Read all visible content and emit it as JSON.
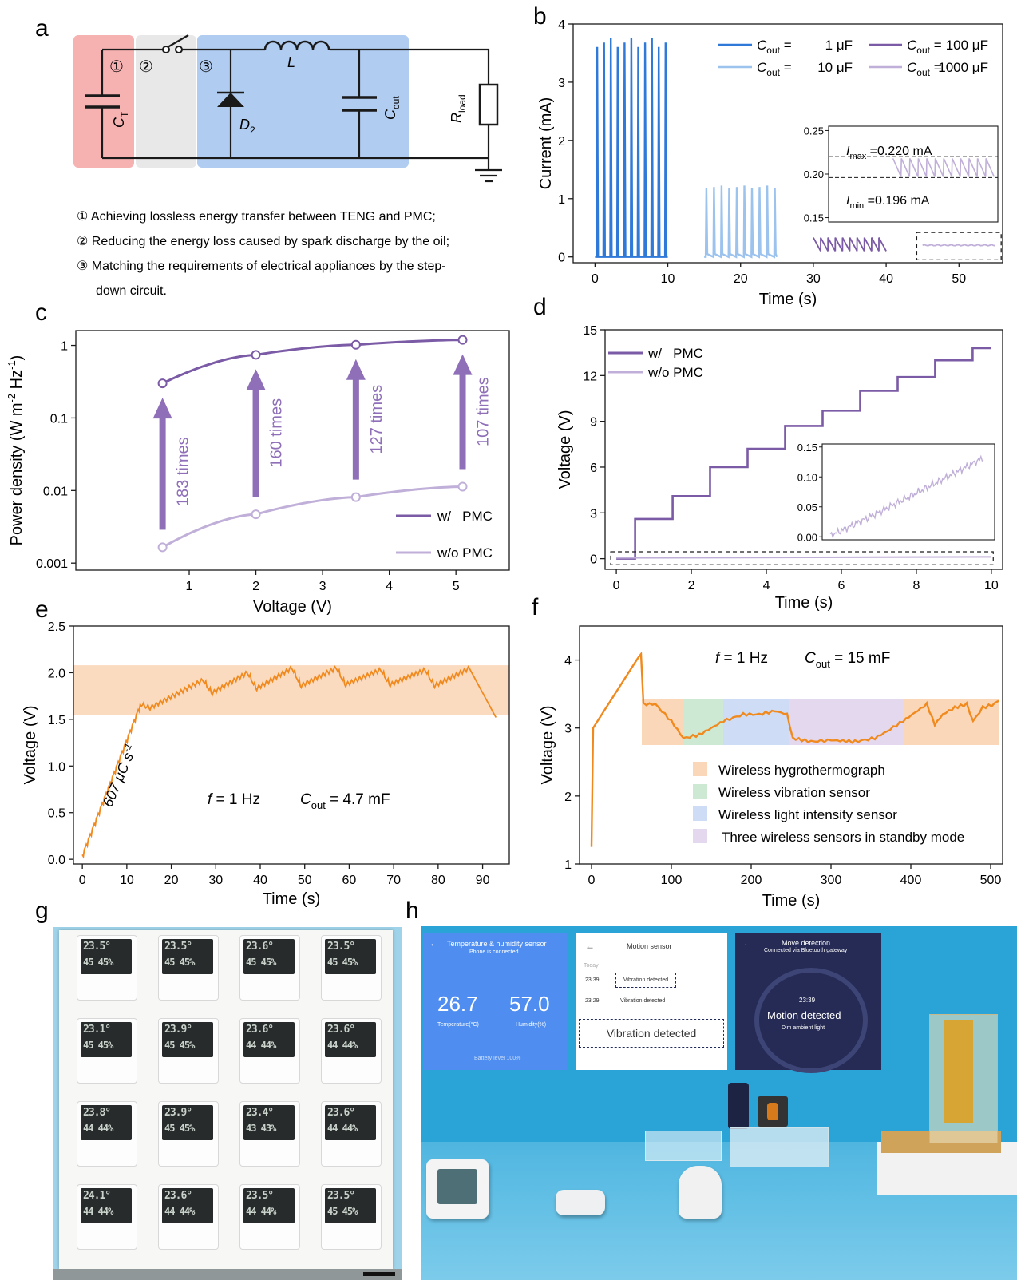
{
  "colors": {
    "purple": "#7b5aa6",
    "lilac": "#c0afd8",
    "blue": "#2f79d9",
    "lightblue": "#9cc3ee",
    "orange": "#f08a1e",
    "pink": "#f4a3a3",
    "gray": "#e8e8e8",
    "bluebox": "#a9c6f0"
  },
  "panels": {
    "a": "a",
    "b": "b",
    "c": "c",
    "d": "d",
    "e": "e",
    "f": "f",
    "g": "g",
    "h": "h"
  },
  "circuit": {
    "markers": [
      "①",
      "②",
      "③"
    ],
    "CT": "C",
    "CT_sub": "T",
    "D2": "D",
    "D2_sub": "2",
    "L": "L",
    "Cout": "C",
    "Cout_sub": "out",
    "Rload": "R",
    "Rload_sub": "load"
  },
  "notes": [
    "① Achieving lossless energy transfer between TENG and PMC;",
    "② Reducing the energy loss caused by spark discharge by the oil;",
    "③ Matching the requirements of electrical appliances by the step-",
    "down circuit."
  ],
  "chart_data": [
    {
      "panel": "b",
      "type": "line",
      "xlabel": "Time (s)",
      "ylabel": "Current (mA)",
      "xlim": [
        -3,
        56
      ],
      "ylim": [
        -0.1,
        4
      ],
      "xticks": [
        0,
        10,
        20,
        30,
        40,
        50
      ],
      "yticks": [
        0,
        1,
        2,
        3,
        4
      ],
      "legend_placement": "top-right",
      "series": [
        {
          "legend": "C",
          "sub": "out",
          "eq": "=",
          "value": "1 μF",
          "color": "#2f79d9",
          "x_range": [
            0,
            10
          ],
          "peak": 3.68,
          "pulses": 11
        },
        {
          "legend": "C",
          "sub": "out",
          "eq": "=",
          "value": "10 μF",
          "color": "#9cc3ee",
          "x_range": [
            15,
            25
          ],
          "peak": 1.2,
          "pulses": 10
        },
        {
          "legend": "C",
          "sub": "out",
          "eq": "=",
          "value": "100 μF",
          "color": "#7b5aa6",
          "x_range": [
            30,
            40
          ],
          "peak": 0.33,
          "pulses": 10
        },
        {
          "legend": "C",
          "sub": "out",
          "eq": "=",
          "value": "1000 μF",
          "color": "#c0afd8",
          "x_range": [
            45,
            55
          ],
          "peak": 0.22,
          "pulses": 10
        }
      ],
      "inset": {
        "yticks": [
          "0.25",
          "0.20",
          "0.15"
        ],
        "ylim": [
          0.145,
          0.255
        ],
        "imax_label": "I",
        "imax_sub": "max",
        "imax_text": "=0.220 mA",
        "imin_label": "I",
        "imin_sub": "min",
        "imin_text": "=0.196 mA",
        "imax": 0.22,
        "imin": 0.196
      }
    },
    {
      "panel": "c",
      "type": "line",
      "xlabel": "Voltage (V)",
      "ylabel": "Power density (W m",
      "ylabel_sup1": "-2",
      "ylabel_mid": " Hz",
      "ylabel_sup2": "-1",
      "ylabel_end": ")",
      "xlim": [
        -0.7,
        5.8
      ],
      "yscale": "log",
      "ylim": [
        0.0008,
        1.6
      ],
      "xticks": [
        1,
        2,
        3,
        4,
        5
      ],
      "yticks": [
        {
          "v": 1,
          "label": "1"
        },
        {
          "v": 0.1,
          "label": "0.1"
        },
        {
          "v": 0.01,
          "label": "0.01"
        },
        {
          "v": 0.001,
          "label": "0.001"
        }
      ],
      "series": [
        {
          "name": "w/   PMC",
          "color": "#7b5aa6",
          "x": [
            0.6,
            2,
            3.5,
            5.1
          ],
          "y": [
            0.3,
            0.74,
            1.02,
            1.19
          ]
        },
        {
          "name": "w/o PMC",
          "color": "#c0afd8",
          "x": [
            0.6,
            2,
            3.5,
            5.1
          ],
          "y": [
            0.00165,
            0.0047,
            0.0081,
            0.0113
          ]
        }
      ],
      "arrows": [
        "183 times",
        "160 times",
        "127 times",
        "107 times"
      ],
      "legend_placement": "bottom-right"
    },
    {
      "panel": "d",
      "type": "line",
      "xlabel": "Time (s)",
      "ylabel": "Voltage (V)",
      "xlim": [
        -0.3,
        10.3
      ],
      "ylim": [
        -0.7,
        15
      ],
      "xticks": [
        0,
        2,
        4,
        6,
        8,
        10
      ],
      "yticks": [
        0,
        3,
        6,
        9,
        12,
        15
      ],
      "series": [
        {
          "name": "w/   PMC",
          "color": "#7b5aa6",
          "steps_x": [
            0,
            0.5,
            1.5,
            2.5,
            3.5,
            4.5,
            5.5,
            6.5,
            7.5,
            8.5,
            9.5,
            10
          ],
          "steps_y": [
            0,
            2.6,
            4.1,
            6,
            7.2,
            8.7,
            9.7,
            11,
            11.9,
            13,
            13.8,
            13.8
          ]
        },
        {
          "name": "w/o PMC",
          "color": "#c0afd8",
          "x": [
            0,
            10
          ],
          "y": [
            0,
            0.14
          ]
        }
      ],
      "inset": {
        "yticks": [
          "0.15",
          "0.10",
          "0.05",
          "0.00"
        ],
        "ylim": [
          -0.005,
          0.155
        ]
      },
      "legend_placement": "top-left"
    },
    {
      "panel": "e",
      "type": "line",
      "xlabel": "Time (s)",
      "ylabel": "Voltage (V)",
      "xlim": [
        -2,
        96
      ],
      "ylim": [
        -0.05,
        2.5
      ],
      "xticks": [
        0,
        10,
        20,
        30,
        40,
        50,
        60,
        70,
        80,
        90
      ],
      "yticks": [
        {
          "v": 0,
          "label": "0.0"
        },
        {
          "v": 0.5,
          "label": "0.5"
        },
        {
          "v": 1,
          "label": "1.0"
        },
        {
          "v": 1.5,
          "label": "1.5"
        },
        {
          "v": 2,
          "label": "2.0"
        },
        {
          "v": 2.5,
          "label": "2.5"
        }
      ],
      "band": [
        1.55,
        2.08
      ],
      "ramp_label": "607 μC s",
      "ramp_sup": "-1",
      "f_label": "f",
      "f_text": " = 1 Hz",
      "c_label": "C",
      "c_sub": "out",
      "c_text": " = 4.7 mF",
      "series": [
        {
          "color": "#f08a1e",
          "x": [
            0,
            13,
            15,
            27,
            29,
            37,
            39,
            47,
            49,
            57,
            59,
            67,
            69,
            77,
            79,
            87,
            93
          ],
          "y": [
            0.05,
            1.66,
            1.62,
            1.92,
            1.78,
            2.0,
            1.83,
            2.05,
            1.86,
            2.05,
            1.87,
            2.03,
            1.87,
            2.03,
            1.86,
            2.05,
            1.52
          ]
        }
      ]
    },
    {
      "panel": "f",
      "type": "line",
      "xlabel": "Time (s)",
      "ylabel": "Voltage (V)",
      "xlim": [
        -15,
        515
      ],
      "ylim": [
        1,
        4.5
      ],
      "xticks": [
        0,
        100,
        200,
        300,
        400,
        500
      ],
      "yticks": [
        1,
        2,
        3,
        4
      ],
      "f_label": "f",
      "f_text": " = 1 Hz",
      "c_label": "C",
      "c_sub": "out",
      "c_text": " = 15 mF",
      "bands": [
        {
          "label": "Wireless hygrothermograph",
          "color": "#fbd7b9",
          "from": 63,
          "to": 115
        },
        {
          "label": "Wireless vibration sensor",
          "color": "#cde9d4",
          "from": 115,
          "to": 165
        },
        {
          "label": "Wireless light intensity sensor",
          "color": "#cfdcf5",
          "from": 165,
          "to": 248
        },
        {
          "label": "Three wireless sensors in standby mode",
          "color": "#e3d8ee",
          "from": 248,
          "to": 390
        },
        {
          "label": "",
          "color": "#fbd7b9",
          "from": 390,
          "to": 510
        }
      ],
      "band_y": [
        2.75,
        3.42
      ],
      "series": [
        {
          "color": "#f08a1e",
          "x": [
            0,
            2,
            62,
            65,
            80,
            100,
            115,
            135,
            165,
            190,
            210,
            230,
            245,
            252,
            275,
            300,
            330,
            355,
            370,
            390,
            420,
            430,
            440,
            455,
            470,
            478,
            490,
            505,
            510
          ],
          "y": [
            1.25,
            3.0,
            4.1,
            3.35,
            3.35,
            3.1,
            2.85,
            2.9,
            3.1,
            3.2,
            3.2,
            3.25,
            3.2,
            2.85,
            2.8,
            2.82,
            2.8,
            2.85,
            2.95,
            3.1,
            3.35,
            3.05,
            3.2,
            3.3,
            3.35,
            3.1,
            3.3,
            3.35,
            3.4
          ]
        }
      ]
    }
  ],
  "photo_g": {
    "readings": [
      [
        "23.5",
        "45"
      ],
      [
        "23.5",
        "45"
      ],
      [
        "23.6",
        "45"
      ],
      [
        "23.5",
        "45"
      ],
      [
        "23.1",
        "45"
      ],
      [
        "23.9",
        "45"
      ],
      [
        "23.6",
        "44"
      ],
      [
        "23.6",
        "44"
      ],
      [
        "23.8",
        "44"
      ],
      [
        "23.9",
        "45"
      ],
      [
        "23.4",
        "43"
      ],
      [
        "23.6",
        "44"
      ],
      [
        "24.1",
        "44"
      ],
      [
        "23.6",
        "44"
      ],
      [
        "23.5",
        "44"
      ],
      [
        "23.5",
        "45"
      ]
    ]
  },
  "photo_h": {
    "screen1": {
      "title": "Temperature & humidity sensor",
      "subtitle": "Phone is connected",
      "temp": "26.7",
      "hum": "57.0",
      "temp_label": "Temperature(°C)",
      "hum_label": "Humidity(%)",
      "battery": "Battery level 100%"
    },
    "screen2": {
      "title": "Motion sensor",
      "day": "Today",
      "row1_time": "23:39",
      "row1_text": "Vibration detected",
      "row2_time": "23:29",
      "row2_text": "Vibration detected",
      "zoom_text": "Vibration detected"
    },
    "screen3": {
      "title": "Move detection",
      "subtitle": "Connected via Bluetooth gateway",
      "time": "23:39",
      "status": "Motion detected",
      "light": "Dim ambient light"
    }
  }
}
